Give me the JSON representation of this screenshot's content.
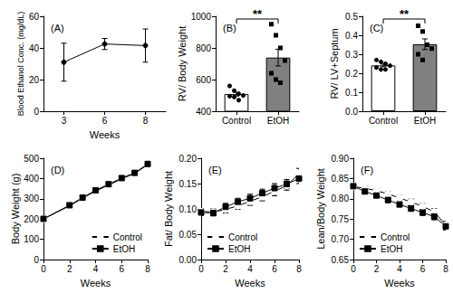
{
  "chart_data": [
    {
      "type": "line",
      "title": "(A)",
      "xlabel": "Weeks",
      "ylabel": "Blood Ethanol Conc. (mg/dL)",
      "categories": [
        "3",
        "6",
        "8"
      ],
      "values": [
        31,
        42.5,
        41.5
      ],
      "errors": [
        12,
        3.5,
        10.5
      ],
      "color": "#000000",
      "marker": "circle",
      "ylim": [
        0,
        60
      ],
      "yticks": [
        0,
        20,
        40,
        60
      ]
    },
    {
      "type": "bar",
      "title": "(B)",
      "ylabel": "RV/ Body Weight",
      "categories": [
        "Control",
        "EtOH"
      ],
      "values": [
        508,
        739
      ],
      "errors": [
        12,
        53
      ],
      "points": [
        [
          560,
          530,
          510,
          500,
          495,
          490,
          470
        ],
        [
          950,
          880,
          800,
          720,
          640,
          600,
          580
        ]
      ],
      "colors": [
        "#ffffff",
        "#808080"
      ],
      "ylim": [
        400,
        1000
      ],
      "yticks": [
        400,
        600,
        800,
        1000
      ],
      "annotations": [
        "**"
      ]
    },
    {
      "type": "bar",
      "title": "(C)",
      "ylabel": "RV/ LV+Septum",
      "categories": [
        "Control",
        "EtOH"
      ],
      "values": [
        0.241,
        0.353
      ],
      "errors": [
        0.007,
        0.028
      ],
      "points": [
        [
          0.27,
          0.26,
          0.25,
          0.24,
          0.23,
          0.22,
          0.22
        ],
        [
          0.45,
          0.42,
          0.35,
          0.33,
          0.3,
          0.27
        ]
      ],
      "colors": [
        "#ffffff",
        "#808080"
      ],
      "ylim": [
        0,
        0.5
      ],
      "yticks": [
        {
          "value": 0,
          "label": "0.0"
        },
        0.1,
        0.2,
        0.3,
        0.4,
        0.5
      ],
      "annotations": [
        "**"
      ]
    },
    {
      "type": "line",
      "title": "(D)",
      "xlabel": "Weeks",
      "ylabel": "Body Weight (g)",
      "x": [
        0,
        2,
        3,
        4,
        5,
        6,
        7,
        8
      ],
      "series": [
        {
          "name": "Control",
          "color": "#000000",
          "marker": "circle_open",
          "values": [
            200,
            265,
            303,
            338,
            368,
            398,
            425,
            468
          ],
          "errors": [
            5,
            6,
            6,
            7,
            7,
            8,
            8,
            10
          ]
        },
        {
          "name": "EtOH",
          "color": "#000000",
          "marker": "square",
          "values": [
            201,
            268,
            306,
            342,
            372,
            402,
            428,
            472
          ],
          "errors": [
            5,
            6,
            6,
            7,
            7,
            8,
            8,
            10
          ]
        }
      ],
      "xlim": [
        0,
        8
      ],
      "xticks": [
        0,
        2,
        4,
        6,
        8
      ],
      "ylim": [
        0,
        500
      ],
      "yticks": [
        0,
        100,
        200,
        300,
        400,
        500
      ],
      "legend": "lower right"
    },
    {
      "type": "line",
      "title": "(E)",
      "xlabel": "Weeks",
      "ylabel": "Fat/ Body Weight",
      "x": [
        0,
        1,
        2,
        3,
        4,
        5,
        6,
        7,
        8
      ],
      "series": [
        {
          "name": "Control",
          "color": "#000000",
          "marker": "circle_open",
          "values": [
            0.095,
            0.094,
            0.099,
            0.106,
            0.115,
            0.124,
            0.135,
            0.146,
            0.17
          ],
          "errors": [
            0.006,
            0.006,
            0.007,
            0.007,
            0.008,
            0.008,
            0.009,
            0.009,
            0.01
          ]
        },
        {
          "name": "EtOH",
          "color": "#000000",
          "marker": "square",
          "values": [
            0.093,
            0.092,
            0.104,
            0.114,
            0.121,
            0.131,
            0.141,
            0.149,
            0.16
          ],
          "errors": [
            0.006,
            0.006,
            0.007,
            0.007,
            0.008,
            0.008,
            0.009,
            0.009,
            0.01
          ]
        }
      ],
      "xlim": [
        0,
        8
      ],
      "xticks": [
        0,
        2,
        4,
        6,
        8
      ],
      "ylim": [
        0,
        0.2
      ],
      "yticks": [
        {
          "value": 0,
          "label": "0.00"
        },
        0.05,
        {
          "value": 0.1,
          "label": "0.10"
        },
        0.15,
        {
          "value": 0.2,
          "label": "0.20"
        }
      ],
      "legend": "lower left"
    },
    {
      "type": "line",
      "title": "(F)",
      "xlabel": "Weeks",
      "ylabel": "Lean/Body Weight",
      "x": [
        0,
        1,
        2,
        3,
        4,
        5,
        6,
        7,
        8
      ],
      "series": [
        {
          "name": "Control",
          "color": "#000000",
          "marker": "circle_open",
          "values": [
            0.83,
            0.826,
            0.82,
            0.812,
            0.802,
            0.792,
            0.781,
            0.768,
            0.735
          ],
          "errors": [
            0.004,
            0.005,
            0.005,
            0.006,
            0.006,
            0.007,
            0.007,
            0.008,
            0.009
          ]
        },
        {
          "name": "EtOH",
          "color": "#000000",
          "marker": "square",
          "values": [
            0.831,
            0.818,
            0.808,
            0.797,
            0.786,
            0.776,
            0.766,
            0.756,
            0.732
          ],
          "errors": [
            0.004,
            0.005,
            0.005,
            0.006,
            0.006,
            0.007,
            0.007,
            0.008,
            0.009
          ]
        }
      ],
      "xlim": [
        0,
        8
      ],
      "xticks": [
        0,
        2,
        4,
        6,
        8
      ],
      "ylim": [
        0.65,
        0.9
      ],
      "yticks": [
        0.65,
        {
          "value": 0.7,
          "label": "0.70"
        },
        0.75,
        {
          "value": 0.8,
          "label": "0.80"
        },
        0.85,
        {
          "value": 0.9,
          "label": "0.90"
        }
      ],
      "legend": "lower left"
    }
  ]
}
